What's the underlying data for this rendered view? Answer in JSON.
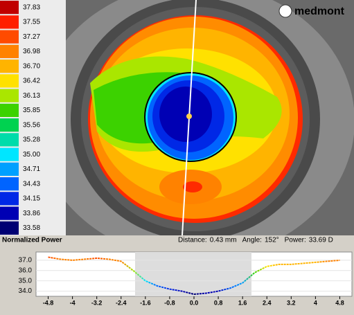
{
  "legend": {
    "title": "Normalized Power",
    "levels": [
      {
        "value": 37.83,
        "color": "#c00000"
      },
      {
        "value": 37.55,
        "color": "#ff1e00"
      },
      {
        "value": 37.27,
        "color": "#ff4b00"
      },
      {
        "value": 36.98,
        "color": "#ff8200"
      },
      {
        "value": 36.7,
        "label": "36.70",
        "color": "#ffb400"
      },
      {
        "value": 36.42,
        "color": "#ffe100"
      },
      {
        "value": 36.13,
        "color": "#aae600"
      },
      {
        "value": 35.85,
        "color": "#3cd200"
      },
      {
        "value": 35.56,
        "color": "#00d250"
      },
      {
        "value": 35.28,
        "color": "#00dcaa"
      },
      {
        "value": 35,
        "label": "35.00",
        "color": "#00e6ff"
      },
      {
        "value": 34.71,
        "color": "#00a0ff"
      },
      {
        "value": 34.43,
        "color": "#0064ff"
      },
      {
        "value": 34.15,
        "color": "#0028e6"
      },
      {
        "value": 33.86,
        "color": "#0000b4"
      },
      {
        "value": 33.58,
        "color": "#000073"
      }
    ]
  },
  "logo": "medmont",
  "status": [
    {
      "label": "Distance:",
      "value": "0.43 mm"
    },
    {
      "label": "Angle:",
      "value": "152°"
    },
    {
      "label": "Power:",
      "value": "33.69 D"
    }
  ],
  "profile": {
    "type": "line",
    "xlim": [
      -5.2,
      5.2
    ],
    "ylim": [
      33.5,
      37.8
    ],
    "xticks": [
      -4.8,
      -4,
      -3.2,
      -2.4,
      -1.6,
      -0.8,
      {
        "value": 0,
        "label": "0.0"
      },
      0.8,
      1.6,
      2.4,
      3.2,
      4,
      4.8
    ],
    "yticks": [
      {
        "value": 37,
        "label": "37.0"
      },
      {
        "value": 36,
        "label": "36.0"
      },
      {
        "value": 35,
        "label": "35.0"
      },
      {
        "value": 34,
        "label": "34.0"
      }
    ],
    "x": [
      -4.8,
      -4.4,
      -4,
      -3.6,
      -3.2,
      -2.8,
      -2.4,
      -2,
      -1.6,
      -1.2,
      -0.8,
      -0.4,
      0,
      0.4,
      0.8,
      1.2,
      1.6,
      2,
      2.4,
      2.8,
      3.2,
      3.6,
      4,
      4.4,
      4.8
    ],
    "values": [
      37.3,
      37.1,
      37,
      37.1,
      37.2,
      37.1,
      36.9,
      36,
      35,
      34.5,
      34.2,
      34,
      33.7,
      33.8,
      34,
      34.3,
      34.8,
      35.8,
      36.4,
      36.6,
      36.6,
      36.7,
      36.8,
      36.9,
      37
    ]
  }
}
